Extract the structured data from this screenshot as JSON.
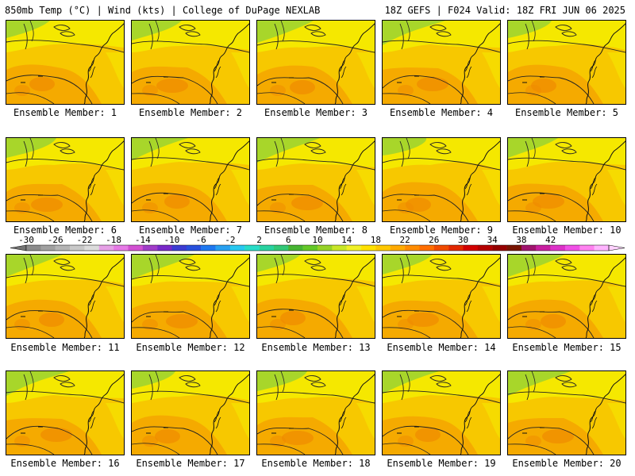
{
  "header": {
    "left": "850mb Temp (°C) | Wind (kts) | College of DuPage NEXLAB",
    "right": "18Z GEFS | F024 Valid: 18Z FRI JUN 06 2025"
  },
  "members": [
    {
      "label": "Ensemble Member: 1"
    },
    {
      "label": "Ensemble Member: 2"
    },
    {
      "label": "Ensemble Member: 3"
    },
    {
      "label": "Ensemble Member: 4"
    },
    {
      "label": "Ensemble Member: 5"
    },
    {
      "label": "Ensemble Member: 6"
    },
    {
      "label": "Ensemble Member: 7"
    },
    {
      "label": "Ensemble Member: 8"
    },
    {
      "label": "Ensemble Member: 9"
    },
    {
      "label": "Ensemble Member: 10"
    },
    {
      "label": "Ensemble Member: 11"
    },
    {
      "label": "Ensemble Member: 12"
    },
    {
      "label": "Ensemble Member: 13"
    },
    {
      "label": "Ensemble Member: 14"
    },
    {
      "label": "Ensemble Member: 15"
    },
    {
      "label": "Ensemble Member: 16"
    },
    {
      "label": "Ensemble Member: 17"
    },
    {
      "label": "Ensemble Member: 18"
    },
    {
      "label": "Ensemble Member: 19"
    },
    {
      "label": "Ensemble Member: 20"
    }
  ],
  "colorbar": {
    "tick_labels": [
      "-30",
      "-26",
      "-22",
      "-18",
      "-14",
      "-10",
      "-6",
      "-2",
      "2",
      "6",
      "10",
      "14",
      "18",
      "22",
      "26",
      "30",
      "34",
      "38",
      "42"
    ],
    "colors": [
      "#8c8c8c",
      "#a0a0a0",
      "#b4b4b4",
      "#c8c8c8",
      "#dcdcdc",
      "#e6a0e6",
      "#e67ae6",
      "#d250d2",
      "#a03cc8",
      "#7828c8",
      "#3c3cd2",
      "#2850dc",
      "#1e78f0",
      "#28a0f0",
      "#28c8f0",
      "#28dcc8",
      "#28d2a0",
      "#32c878",
      "#46b432",
      "#64c828",
      "#96d228",
      "#c8e628",
      "#f0f028",
      "#ffe100",
      "#ffc800",
      "#ffaa00",
      "#ff8c00",
      "#ff6e00",
      "#f04b00",
      "#e12800",
      "#d20000",
      "#b40000",
      "#960000",
      "#781400",
      "#a0146e",
      "#c81ea0",
      "#dc32c8",
      "#f050e6",
      "#ff82f0",
      "#ffb4ff"
    ]
  },
  "palette": {
    "green": "#a8d62a",
    "yellow": "#f5e800",
    "yellow_orange": "#f7c800",
    "orange": "#f5aa00",
    "dark_orange": "#f08a00"
  }
}
